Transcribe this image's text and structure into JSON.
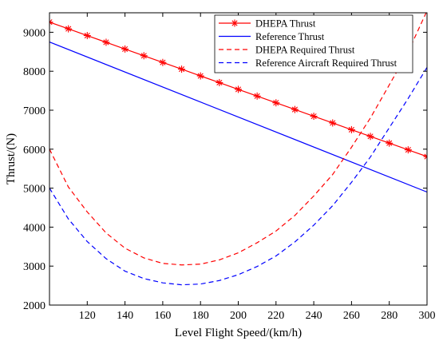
{
  "chart_data": {
    "type": "line",
    "xlabel": "Level Flight Speed/(km/h)",
    "ylabel": "Thrust/(N)",
    "xlim": [
      100,
      300
    ],
    "ylim": [
      2000,
      9500
    ],
    "xticks": [
      120,
      140,
      160,
      180,
      200,
      220,
      240,
      260,
      280,
      300
    ],
    "yticks": [
      2000,
      3000,
      4000,
      5000,
      6000,
      7000,
      8000,
      9000
    ],
    "legend_position": "top-right",
    "grid": false,
    "series": [
      {
        "name": "DHEPA Thrust",
        "color": "#ff0000",
        "style": "solid",
        "marker": "asterisk",
        "x": [
          100,
          110,
          120,
          130,
          140,
          150,
          160,
          170,
          180,
          190,
          200,
          210,
          220,
          230,
          240,
          250,
          260,
          270,
          280,
          290,
          300
        ],
        "y": [
          9260,
          9088,
          8915,
          8743,
          8570,
          8398,
          8225,
          8053,
          7880,
          7708,
          7535,
          7363,
          7190,
          7018,
          6845,
          6673,
          6500,
          6328,
          6155,
          5983,
          5810
        ]
      },
      {
        "name": "Reference Thrust",
        "color": "#0000ff",
        "style": "solid",
        "marker": "none",
        "x": [
          100,
          300
        ],
        "y": [
          8750,
          4900
        ]
      },
      {
        "name": "DHEPA Required Thrust",
        "color": "#ff0000",
        "style": "dashed",
        "marker": "none",
        "x": [
          100,
          110,
          120,
          130,
          140,
          150,
          160,
          170,
          180,
          190,
          200,
          210,
          220,
          230,
          240,
          250,
          260,
          270,
          280,
          290,
          300
        ],
        "y": [
          6000,
          5030,
          4390,
          3850,
          3460,
          3210,
          3070,
          3030,
          3050,
          3160,
          3340,
          3600,
          3900,
          4300,
          4800,
          5350,
          6050,
          6800,
          7650,
          8500,
          9550
        ]
      },
      {
        "name": "Reference Aircraft Required Thrust",
        "color": "#0000ff",
        "style": "dashed",
        "marker": "none",
        "x": [
          100,
          110,
          120,
          130,
          140,
          150,
          160,
          170,
          180,
          190,
          200,
          210,
          220,
          230,
          240,
          250,
          260,
          270,
          280,
          290,
          300
        ],
        "y": [
          5000,
          4210,
          3630,
          3190,
          2870,
          2680,
          2570,
          2520,
          2540,
          2630,
          2780,
          2990,
          3260,
          3620,
          4050,
          4550,
          5150,
          5800,
          6550,
          7300,
          8100
        ]
      }
    ]
  }
}
